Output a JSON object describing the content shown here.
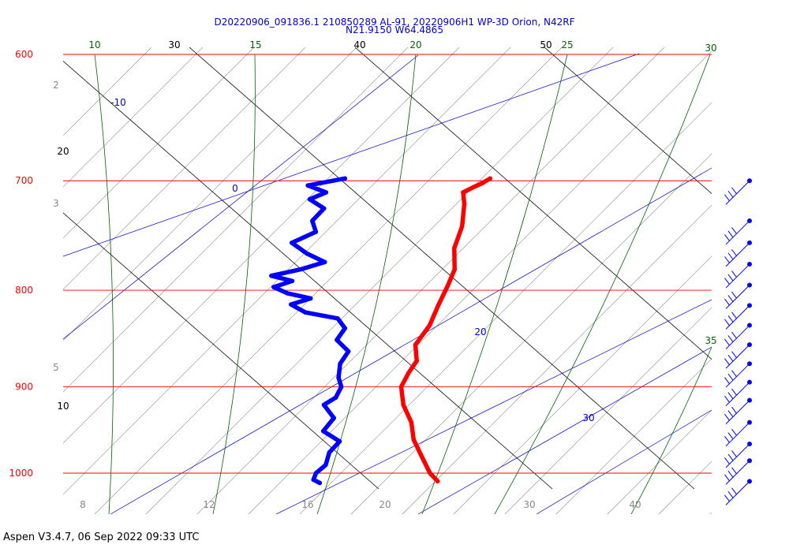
{
  "header": {
    "line1": "D20220906_091836.1 210850289 AL-91, 20220906H1 WP-3D Orion, N42RF",
    "line2": "N21.9150 W64.4865"
  },
  "footer": {
    "text": "Aspen V3.4.7, 06 Sep 2022  09:33 UTC"
  },
  "colors": {
    "isobar": "#ff0000",
    "isotherm": "#000000",
    "dry_adiabat": "#000000",
    "mixing_ratio": "#0000cc",
    "moist_adiabat": "#006400",
    "temperature": "#ff0000",
    "dewpoint": "#0000ff"
  },
  "chart_data": {
    "type": "line",
    "title": "",
    "xlabel": "",
    "ylabel": "",
    "y_axis": "pressure (hPa), log scale, reversed",
    "ylim": [
      1050,
      600
    ],
    "isobars": [
      {
        "p": 600,
        "label": "600"
      },
      {
        "p": 700,
        "label": "700"
      },
      {
        "p": 800,
        "label": "800"
      },
      {
        "p": 900,
        "label": "900"
      },
      {
        "p": 1000,
        "label": "1000"
      }
    ],
    "isotherm_labels": [
      {
        "value": "30",
        "p": 600
      },
      {
        "value": "40",
        "p": 600
      },
      {
        "value": "50",
        "p": 600
      },
      {
        "value": "20",
        "p": 660
      },
      {
        "value": "10",
        "p": 935
      }
    ],
    "moist_adiabat_labels": [
      {
        "value": "10",
        "p": 600
      },
      {
        "value": "15",
        "p": 600
      },
      {
        "value": "20",
        "p": 600
      },
      {
        "value": "25",
        "p": 600
      },
      {
        "value": "30",
        "p": 600
      },
      {
        "value": "35",
        "p": 860
      }
    ],
    "mixing_ratio_labels": [
      {
        "value": "-10",
        "p": 625
      },
      {
        "value": "0",
        "p": 705
      },
      {
        "value": "20",
        "p": 865
      },
      {
        "value": "30",
        "p": 950
      }
    ],
    "dry_adiabat_left_labels": [
      "2",
      "3",
      "5"
    ],
    "bottom_labels": [
      "8",
      "12",
      "16",
      "20",
      "30",
      "40"
    ],
    "series": [
      {
        "name": "",
        "color": "#ff0000",
        "points": [
          {
            "p": 698,
            "t": 25.1
          },
          {
            "p": 702,
            "t": 24.5
          },
          {
            "p": 705,
            "t": 23.9
          },
          {
            "p": 710,
            "t": 23.0
          },
          {
            "p": 720,
            "t": 23.3
          },
          {
            "p": 740,
            "t": 23.5
          },
          {
            "p": 760,
            "t": 23.2
          },
          {
            "p": 780,
            "t": 23.6
          },
          {
            "p": 795,
            "t": 23.3
          },
          {
            "p": 815,
            "t": 22.8
          },
          {
            "p": 835,
            "t": 22.4
          },
          {
            "p": 855,
            "t": 21.5
          },
          {
            "p": 872,
            "t": 21.9
          },
          {
            "p": 885,
            "t": 21.4
          },
          {
            "p": 900,
            "t": 21.0
          },
          {
            "p": 920,
            "t": 21.5
          },
          {
            "p": 940,
            "t": 22.5
          },
          {
            "p": 960,
            "t": 23.0
          },
          {
            "p": 980,
            "t": 24.0
          },
          {
            "p": 1000,
            "t": 25.0
          },
          {
            "p": 1010,
            "t": 25.8
          }
        ]
      },
      {
        "name": "",
        "color": "#0000ff",
        "points": [
          {
            "p": 698,
            "t": 12.5
          },
          {
            "p": 704,
            "t": 9.4
          },
          {
            "p": 710,
            "t": 11.1
          },
          {
            "p": 716,
            "t": 9.8
          },
          {
            "p": 724,
            "t": 11.2
          },
          {
            "p": 735,
            "t": 10.4
          },
          {
            "p": 745,
            "t": 10.9
          },
          {
            "p": 755,
            "t": 9.0
          },
          {
            "p": 765,
            "t": 10.5
          },
          {
            "p": 773,
            "t": 12.2
          },
          {
            "p": 780,
            "t": 10.2
          },
          {
            "p": 786,
            "t": 7.8
          },
          {
            "p": 791,
            "t": 9.7
          },
          {
            "p": 797,
            "t": 8.2
          },
          {
            "p": 803,
            "t": 9.5
          },
          {
            "p": 808,
            "t": 11.6
          },
          {
            "p": 814,
            "t": 10.0
          },
          {
            "p": 822,
            "t": 11.4
          },
          {
            "p": 828,
            "t": 14.3
          },
          {
            "p": 838,
            "t": 15.1
          },
          {
            "p": 850,
            "t": 14.6
          },
          {
            "p": 862,
            "t": 15.8
          },
          {
            "p": 875,
            "t": 15.3
          },
          {
            "p": 890,
            "t": 15.4
          },
          {
            "p": 900,
            "t": 15.8
          },
          {
            "p": 912,
            "t": 15.5
          },
          {
            "p": 920,
            "t": 14.6
          },
          {
            "p": 935,
            "t": 15.7
          },
          {
            "p": 950,
            "t": 15.0
          },
          {
            "p": 962,
            "t": 16.6
          },
          {
            "p": 975,
            "t": 15.9
          },
          {
            "p": 990,
            "t": 15.8
          },
          {
            "p": 1000,
            "t": 15.1
          },
          {
            "p": 1008,
            "t": 15.0
          },
          {
            "p": 1012,
            "t": 15.6
          }
        ]
      }
    ],
    "wind_barbs": [
      {
        "p": 700,
        "flags": 3
      },
      {
        "p": 735,
        "flags": 3
      },
      {
        "p": 755,
        "flags": 3
      },
      {
        "p": 775,
        "flags": 3
      },
      {
        "p": 795,
        "flags": 3
      },
      {
        "p": 815,
        "flags": 3
      },
      {
        "p": 835,
        "flags": 3
      },
      {
        "p": 855,
        "flags": 3
      },
      {
        "p": 875,
        "flags": 3
      },
      {
        "p": 895,
        "flags": 3
      },
      {
        "p": 915,
        "flags": 3
      },
      {
        "p": 940,
        "flags": 3
      },
      {
        "p": 965,
        "flags": 3
      },
      {
        "p": 985,
        "flags": 3
      },
      {
        "p": 1010,
        "flags": 3
      }
    ]
  }
}
